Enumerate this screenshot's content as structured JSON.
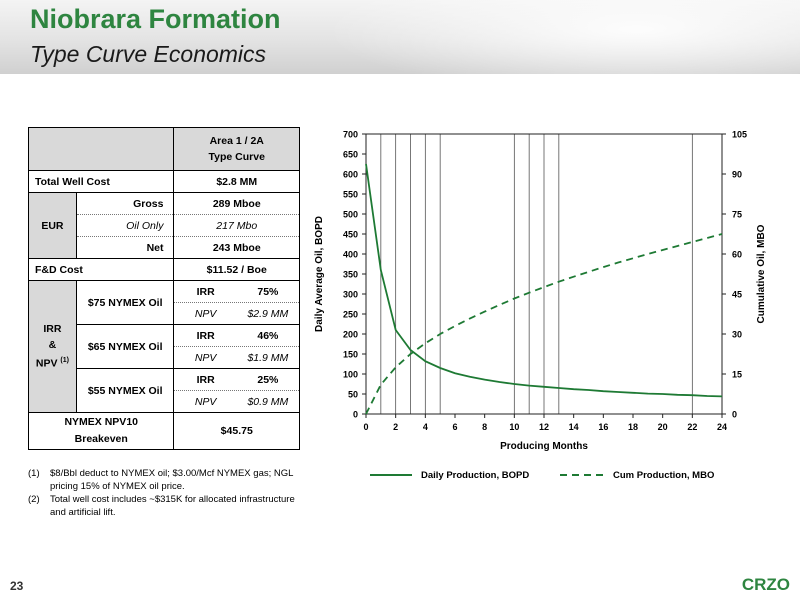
{
  "header": {
    "title": "Niobrara Formation",
    "subtitle": "Type Curve Economics"
  },
  "table": {
    "col_header_line1": "Area 1 / 2A",
    "col_header_line2": "Type Curve",
    "total_well_cost_label": "Total Well Cost",
    "total_well_cost_value": "$2.8 MM",
    "eur_label": "EUR",
    "eur_gross_label": "Gross",
    "eur_gross_value": "289 Mboe",
    "eur_oil_label": "Oil Only",
    "eur_oil_value": "217 Mbo",
    "eur_net_label": "Net",
    "eur_net_value": "243 Mboe",
    "fd_label": "F&D Cost",
    "fd_value": "$11.52 / Boe",
    "irr_label_1": "IRR",
    "irr_label_2": "&",
    "irr_label_3": "NPV",
    "irr_label_sup": "(1)",
    "cases": [
      {
        "label": "$75 NYMEX Oil",
        "irr_label": "IRR",
        "irr": "75%",
        "npv_label": "NPV",
        "npv": "$2.9 MM"
      },
      {
        "label": "$65 NYMEX Oil",
        "irr_label": "IRR",
        "irr": "46%",
        "npv_label": "NPV",
        "npv": "$1.9 MM"
      },
      {
        "label": "$55 NYMEX Oil",
        "irr_label": "IRR",
        "irr": "25%",
        "npv_label": "NPV",
        "npv": "$0.9 MM"
      }
    ],
    "breakeven_label_1": "NYMEX NPV10",
    "breakeven_label_2": "Breakeven",
    "breakeven_value": "$45.75"
  },
  "notes": [
    {
      "num": "(1)",
      "text": "$8/Bbl deduct to NYMEX oil; $3.00/Mcf NYMEX gas; NGL pricing 15% of NYMEX oil price."
    },
    {
      "num": "(2)",
      "text": "Total well cost includes ~$315K for allocated infrastructure and artificial lift."
    }
  ],
  "chart_data": {
    "type": "line",
    "xlabel": "Producing Months",
    "ylabel": "Daily Average Oil, BOPD",
    "y2label": "Cumulative Oil, MBO",
    "xlim": [
      0,
      24
    ],
    "ylim": [
      0,
      700
    ],
    "y2lim": [
      0,
      105
    ],
    "xticks": [
      0,
      2,
      4,
      6,
      8,
      10,
      12,
      14,
      16,
      18,
      20,
      22,
      24
    ],
    "yticks": [
      0,
      50,
      100,
      150,
      200,
      250,
      300,
      350,
      400,
      450,
      500,
      550,
      600,
      650,
      700
    ],
    "y2ticks": [
      0,
      15,
      30,
      45,
      60,
      75,
      90,
      105
    ],
    "vertical_gridlines": [
      1,
      2,
      3,
      4,
      5,
      10,
      11,
      12,
      13,
      22
    ],
    "legend_position": "bottom",
    "series": [
      {
        "name": "Daily Production, BOPD",
        "axis": "left",
        "style": "solid",
        "x": [
          0,
          1,
          2,
          3,
          4,
          5,
          6,
          7,
          8,
          9,
          10,
          11,
          12,
          13,
          14,
          15,
          16,
          17,
          18,
          19,
          20,
          21,
          22,
          23,
          24
        ],
        "y": [
          625,
          360,
          210,
          160,
          132,
          115,
          102,
          93,
          86,
          80,
          75,
          71,
          68,
          65,
          62,
          60,
          57,
          55,
          53,
          51,
          50,
          48,
          47,
          45,
          44
        ]
      },
      {
        "name": "Cum Production, MBO",
        "axis": "right",
        "style": "dashed",
        "x": [
          0,
          1,
          2,
          3,
          4,
          5,
          6,
          7,
          8,
          9,
          10,
          11,
          12,
          13,
          14,
          15,
          16,
          17,
          18,
          19,
          20,
          21,
          22,
          23,
          24
        ],
        "y": [
          0,
          11,
          17.5,
          22.5,
          26.5,
          30,
          33,
          35.8,
          38.4,
          40.9,
          43.3,
          45.5,
          47.6,
          49.6,
          51.5,
          53.3,
          55.1,
          56.8,
          58.4,
          60,
          61.5,
          63,
          64.5,
          66,
          67.5
        ]
      }
    ]
  },
  "footer": {
    "page_number": "23",
    "logo_text": "CRZO"
  },
  "colors": {
    "brand_green": "#2e8540",
    "line_green": "#1e7a34",
    "table_gray": "#d9d9d9"
  }
}
